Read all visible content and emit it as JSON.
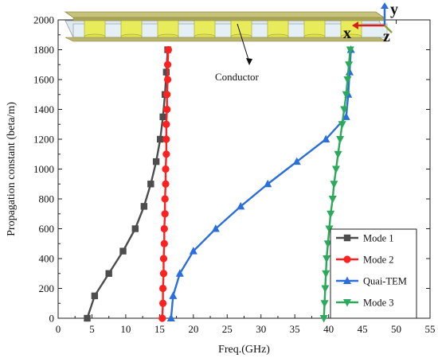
{
  "colors": {
    "mode1": "#4d4d4d",
    "mode2": "#ff2020",
    "quasi_tem": "#2a6fdb",
    "mode3": "#2aaa5a",
    "plate": "#b5b066",
    "post": "#e8ec5a",
    "y_arrow": "#2f6fd6",
    "z_arrow": "#d52020",
    "x_arrow": "#8aa33a"
  },
  "inset": {
    "annotation_label": "Conductor",
    "axis_letters": {
      "y": "y",
      "x": "x",
      "z": "z"
    }
  },
  "chart_data": {
    "type": "line",
    "xlabel": "Freq.(GHz)",
    "ylabel": "Propagation constant (beta/m)",
    "xlim": [
      0,
      55
    ],
    "ylim": [
      0,
      2000
    ],
    "xticks": [
      "0",
      "5",
      "10",
      "15",
      "20",
      "25",
      "30",
      "35",
      "40",
      "45",
      "50",
      "55"
    ],
    "yticks": [
      "0",
      "200",
      "400",
      "600",
      "800",
      "1000",
      "1200",
      "1400",
      "1600",
      "1800",
      "2000"
    ],
    "grid": false,
    "legend_position": "bottom-right",
    "series": [
      {
        "name": "Mode 1",
        "marker": "square",
        "points": [
          {
            "x": 4.3,
            "y": 0
          },
          {
            "x": 5.4,
            "y": 150
          },
          {
            "x": 7.5,
            "y": 300
          },
          {
            "x": 9.6,
            "y": 450
          },
          {
            "x": 11.4,
            "y": 600
          },
          {
            "x": 12.7,
            "y": 750
          },
          {
            "x": 13.7,
            "y": 900
          },
          {
            "x": 14.5,
            "y": 1050
          },
          {
            "x": 15.1,
            "y": 1200
          },
          {
            "x": 15.5,
            "y": 1350
          },
          {
            "x": 15.8,
            "y": 1500
          },
          {
            "x": 16.0,
            "y": 1650
          },
          {
            "x": 16.2,
            "y": 1800
          }
        ]
      },
      {
        "name": "Mode 2",
        "marker": "circle",
        "points": [
          {
            "x": 15.4,
            "y": 0
          },
          {
            "x": 15.5,
            "y": 100
          },
          {
            "x": 15.5,
            "y": 200
          },
          {
            "x": 15.6,
            "y": 300
          },
          {
            "x": 15.6,
            "y": 400
          },
          {
            "x": 15.7,
            "y": 500
          },
          {
            "x": 15.7,
            "y": 600
          },
          {
            "x": 15.8,
            "y": 700
          },
          {
            "x": 15.8,
            "y": 800
          },
          {
            "x": 15.9,
            "y": 900
          },
          {
            "x": 15.9,
            "y": 1000
          },
          {
            "x": 16.0,
            "y": 1100
          },
          {
            "x": 16.0,
            "y": 1200
          },
          {
            "x": 16.0,
            "y": 1300
          },
          {
            "x": 16.1,
            "y": 1400
          },
          {
            "x": 16.1,
            "y": 1500
          },
          {
            "x": 16.2,
            "y": 1600
          },
          {
            "x": 16.2,
            "y": 1700
          },
          {
            "x": 16.3,
            "y": 1800
          }
        ]
      },
      {
        "name": "Quai-TEM",
        "marker": "triangle-up",
        "points": [
          {
            "x": 16.7,
            "y": 0
          },
          {
            "x": 17.0,
            "y": 150
          },
          {
            "x": 18.0,
            "y": 300
          },
          {
            "x": 20.0,
            "y": 450
          },
          {
            "x": 23.3,
            "y": 600
          },
          {
            "x": 27.0,
            "y": 750
          },
          {
            "x": 31.0,
            "y": 900
          },
          {
            "x": 35.3,
            "y": 1050
          },
          {
            "x": 39.6,
            "y": 1200
          },
          {
            "x": 42.6,
            "y": 1350
          },
          {
            "x": 42.9,
            "y": 1500
          },
          {
            "x": 43.1,
            "y": 1650
          },
          {
            "x": 43.3,
            "y": 1800
          }
        ]
      },
      {
        "name": "Mode 3",
        "marker": "triangle-down",
        "points": [
          {
            "x": 39.3,
            "y": 0
          },
          {
            "x": 39.4,
            "y": 100
          },
          {
            "x": 39.5,
            "y": 200
          },
          {
            "x": 39.6,
            "y": 300
          },
          {
            "x": 39.7,
            "y": 400
          },
          {
            "x": 39.9,
            "y": 500
          },
          {
            "x": 40.1,
            "y": 600
          },
          {
            "x": 40.3,
            "y": 700
          },
          {
            "x": 40.6,
            "y": 800
          },
          {
            "x": 40.8,
            "y": 900
          },
          {
            "x": 41.1,
            "y": 1000
          },
          {
            "x": 41.4,
            "y": 1100
          },
          {
            "x": 41.7,
            "y": 1200
          },
          {
            "x": 42.0,
            "y": 1300
          },
          {
            "x": 42.3,
            "y": 1400
          },
          {
            "x": 42.6,
            "y": 1500
          },
          {
            "x": 42.8,
            "y": 1600
          },
          {
            "x": 43.0,
            "y": 1700
          },
          {
            "x": 43.2,
            "y": 1800
          }
        ]
      }
    ]
  }
}
